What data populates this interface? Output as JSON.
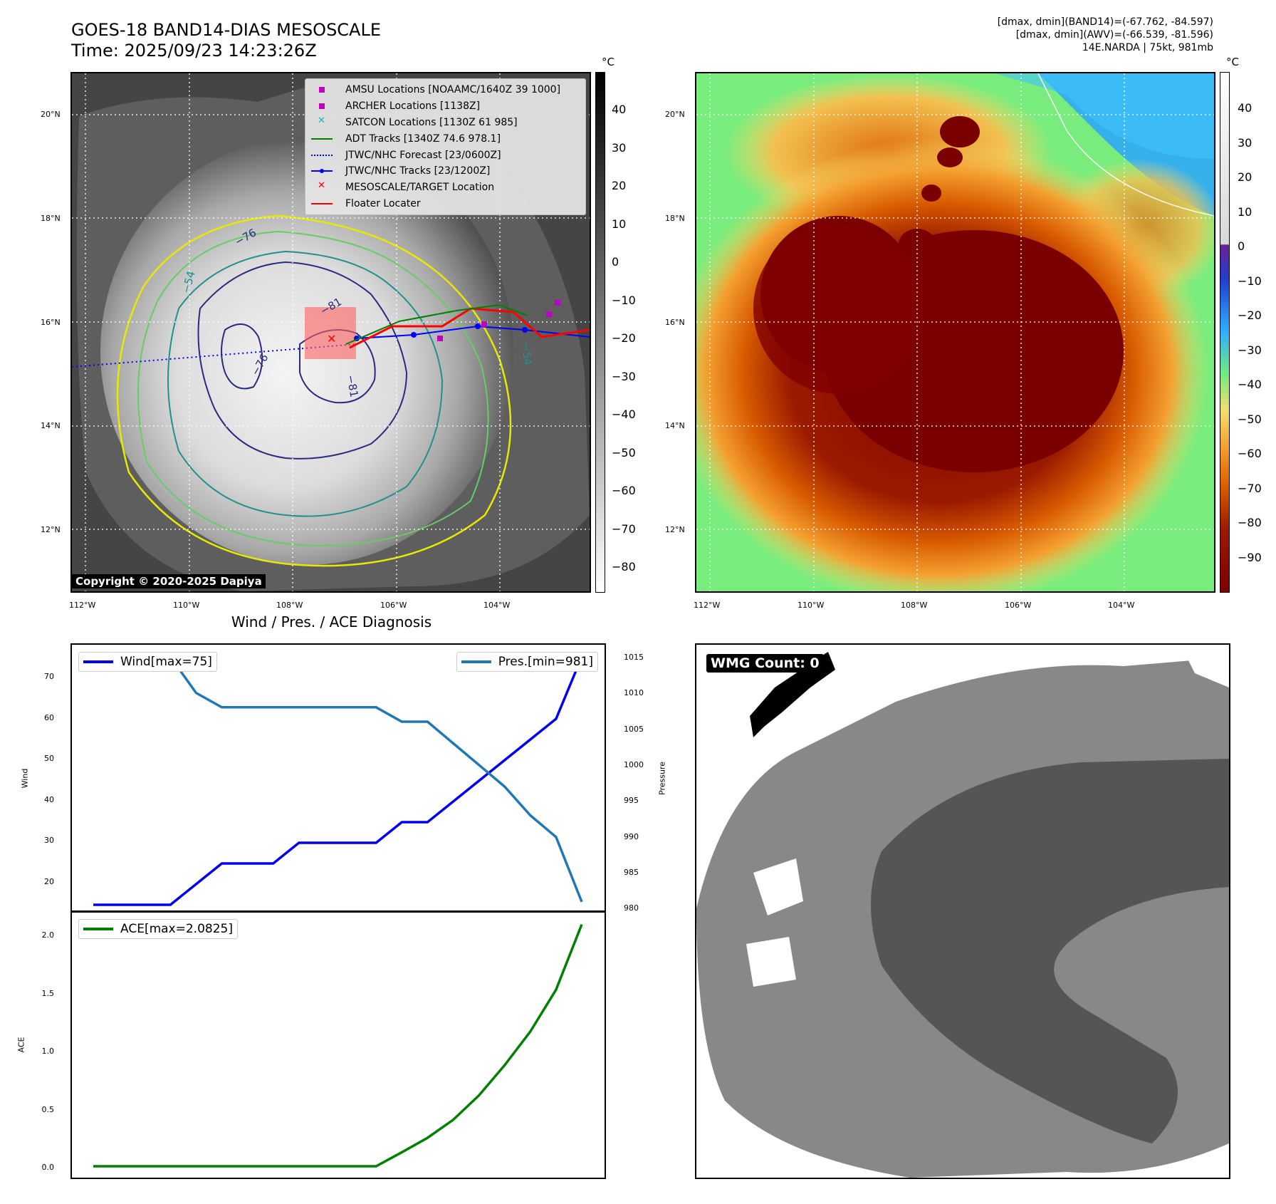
{
  "header": {
    "title_line1": "GOES-18 BAND14-DIAS MESOSCALE",
    "title_line2": "Time: 2025/09/23 14:23:26Z",
    "info_line1": "[dmax, dmin](BAND14)=(-67.762, -84.597)",
    "info_line2": "[dmax, dmin](AWV)=(-66.539, -81.596)",
    "info_line3": "14E.NARDA | 75kt, 981mb"
  },
  "map": {
    "lat_labels": [
      "20°N",
      "18°N",
      "16°N",
      "14°N",
      "12°N"
    ],
    "lon_labels": [
      "112°W",
      "110°W",
      "108°W",
      "106°W",
      "104°W"
    ],
    "copyright": "Copyright © 2020-2025 Dapiya",
    "contour_labels": [
      "−76",
      "−54",
      "−81",
      "−76",
      "−81",
      "−54"
    ],
    "legend": [
      {
        "label": "AMSU Locations [NOAAMC/1640Z 39 1000]",
        "color": "#c000c0",
        "symbol": "square"
      },
      {
        "label": "ARCHER Locations [1138Z]",
        "color": "#c000c0",
        "symbol": "square"
      },
      {
        "label": "SATCON Locations [1130Z 61 985]",
        "color": "#20b0b0",
        "symbol": "x"
      },
      {
        "label": "ADT Tracks [1340Z 74.6 978.1]",
        "color": "#008000",
        "symbol": "line"
      },
      {
        "label": "JTWC/NHC Forecast [23/0600Z]",
        "color": "#0000ff",
        "symbol": "dotted"
      },
      {
        "label": "JTWC/NHC Tracks [23/1200Z]",
        "color": "#0000ff",
        "symbol": "line-dot"
      },
      {
        "label": "MESOSCALE/TARGET Location",
        "color": "#ff0000",
        "symbol": "x"
      },
      {
        "label": "Floater Locater",
        "color": "#ff0000",
        "symbol": "line"
      }
    ]
  },
  "colorbar_left": {
    "unit": "°C",
    "ticks": [
      "40",
      "30",
      "20",
      "10",
      "0",
      "−10",
      "−20",
      "−30",
      "−40",
      "−50",
      "−60",
      "−70",
      "−80"
    ]
  },
  "colorbar_right": {
    "unit": "°C",
    "ticks": [
      "40",
      "30",
      "20",
      "10",
      "0",
      "−10",
      "−20",
      "−30",
      "−40",
      "−50",
      "−60",
      "−70",
      "−80",
      "−90"
    ]
  },
  "diagnosis": {
    "title": "Wind / Pres. / ACE Diagnosis",
    "wind_legend": "Wind[max=75]",
    "pres_legend": "Pres.[min=981]",
    "ace_legend": "ACE[max=2.0825]",
    "wind_ylabel": "Wind",
    "pres_ylabel": "Pressure",
    "ace_ylabel": "ACE",
    "wind_ticks": [
      "70",
      "60",
      "50",
      "40",
      "30",
      "20"
    ],
    "pres_ticks": [
      "1015",
      "1010",
      "1005",
      "1000",
      "995",
      "990",
      "985",
      "980"
    ],
    "ace_ticks": [
      "2.0",
      "1.5",
      "1.0",
      "0.5",
      "0.0"
    ]
  },
  "chart_data": [
    {
      "type": "line",
      "title": "Wind / Pres. / ACE Diagnosis",
      "series": [
        {
          "name": "Wind[max=75]",
          "color": "#0000ee",
          "axis": "left",
          "values": [
            15,
            15,
            15,
            15,
            20,
            25,
            25,
            25,
            30,
            30,
            30,
            30,
            35,
            35,
            40,
            45,
            50,
            55,
            60,
            75
          ]
        },
        {
          "name": "Pres.[min=981]",
          "color": "#1f77b4",
          "axis": "right",
          "values": [
            1015,
            1015,
            1015,
            1015,
            1010,
            1008,
            1008,
            1008,
            1008,
            1008,
            1008,
            1008,
            1006,
            1006,
            1003,
            1000,
            997,
            993,
            990,
            981
          ]
        }
      ],
      "ylim": [
        15,
        77
      ],
      "y2lim": [
        979.5,
        1016.2
      ]
    },
    {
      "type": "line",
      "series": [
        {
          "name": "ACE[max=2.0825]",
          "color": "#008000",
          "values": [
            0,
            0,
            0,
            0,
            0,
            0,
            0,
            0,
            0,
            0,
            0,
            0,
            0.12,
            0.245,
            0.4,
            0.61,
            0.87,
            1.16,
            1.52,
            2.0825
          ]
        }
      ],
      "ylim": [
        -0.05,
        2.18
      ]
    }
  ],
  "wmg": {
    "label": "WMG Count: 0"
  }
}
